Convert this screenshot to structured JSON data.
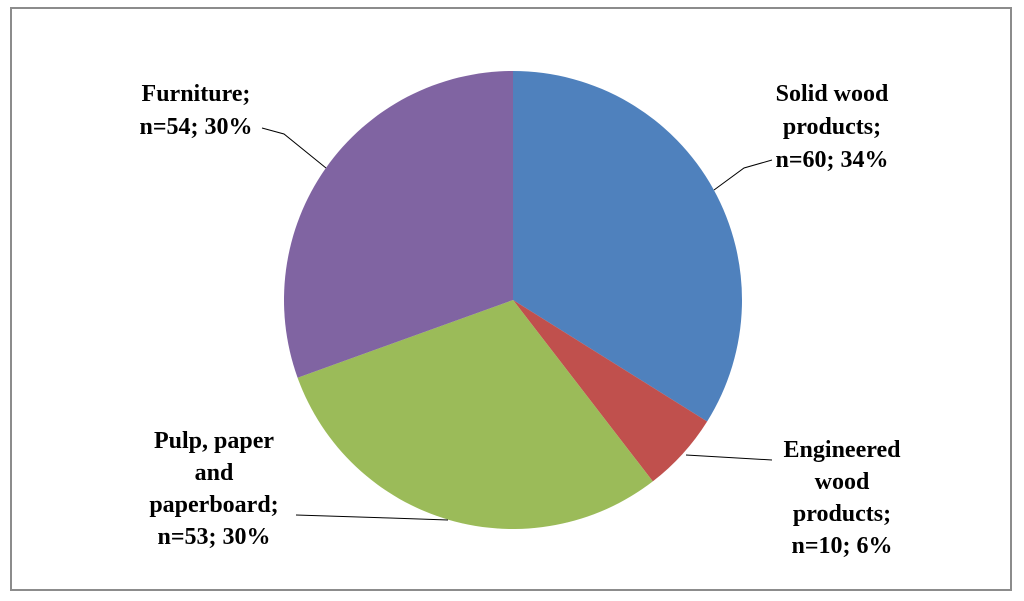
{
  "chart_data": {
    "type": "pie",
    "title": "",
    "slices": [
      {
        "category": "Solid wood products",
        "value": 60,
        "percent": 34,
        "color": "#4f81bd",
        "label_lines": [
          "Solid wood",
          "products;",
          "n=60; 34%"
        ]
      },
      {
        "category": "Engineered wood products",
        "value": 10,
        "percent": 6,
        "color": "#c0504d",
        "label_lines": [
          "Engineered",
          "wood",
          "products;",
          "n=10; 6%"
        ]
      },
      {
        "category": "Pulp, paper and paperboard",
        "value": 53,
        "percent": 30,
        "color": "#9bbb59",
        "label_lines": [
          "Pulp, paper",
          "and",
          "paperboard;",
          "n=53; 30%"
        ]
      },
      {
        "category": "Furniture",
        "value": 54,
        "percent": 30,
        "color": "#8064a2",
        "label_lines": [
          "Furniture;",
          "n=54; 30%"
        ]
      }
    ],
    "start_angle": "12 o'clock",
    "direction": "clockwise",
    "legend": "none"
  }
}
